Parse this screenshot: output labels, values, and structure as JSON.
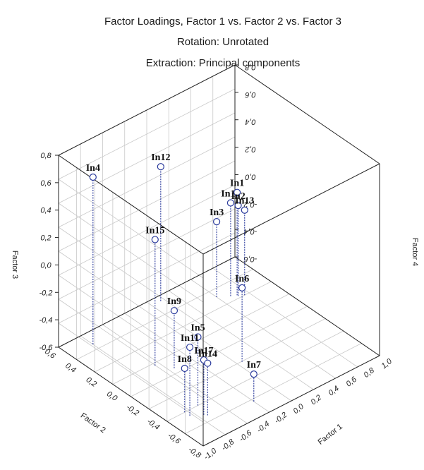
{
  "chart_data": {
    "type": "scatter3d",
    "title_lines": [
      "Factor Loadings, Factor 1 vs. Factor 2 vs. Factor 3",
      "Rotation: Unrotated",
      "Extraction: Principal components"
    ],
    "axes": {
      "factor1": {
        "label": "Factor 1",
        "range": [
          -1.0,
          1.0
        ],
        "ticks": [
          "-1,0",
          "-0,8",
          "-0,6",
          "-0,4",
          "-0,2",
          "0,0",
          "0,2",
          "0,4",
          "0,6",
          "0,8",
          "1,0"
        ]
      },
      "factor2": {
        "label": "Factor 2",
        "range": [
          -0.8,
          0.6
        ],
        "ticks": [
          "-0,8",
          "-0,6",
          "-0,4",
          "-0,2",
          "0,0",
          "0,2",
          "0,4",
          "0,6"
        ]
      },
      "factor3": {
        "label": "Factor 3",
        "range": [
          -0.6,
          0.8
        ],
        "ticks": [
          "-0,6",
          "-0,4",
          "-0,2",
          "0,0",
          "0,2",
          "0,4",
          "0,6",
          "0,8"
        ]
      },
      "factor4_right": {
        "label": "Factor 4",
        "ticks": [
          "-0,6",
          "-0,4",
          "-0,2",
          "0,0",
          "0,2",
          "0,4",
          "0,6",
          "0,8"
        ]
      }
    },
    "grid": true,
    "points": [
      {
        "label": "In4",
        "x": -0.75,
        "y": 0.48,
        "z": 0.62
      },
      {
        "label": "In15",
        "x": -0.55,
        "y": 0.05,
        "z": 0.32
      },
      {
        "label": "In12",
        "x": 0.1,
        "y": 0.55,
        "z": 0.38
      },
      {
        "label": "In1",
        "x": 0.65,
        "y": 0.28,
        "z": 0.15
      },
      {
        "label": "In10",
        "x": 0.6,
        "y": 0.3,
        "z": 0.08
      },
      {
        "label": "In2",
        "x": 0.65,
        "y": 0.27,
        "z": 0.06
      },
      {
        "label": "In13",
        "x": 0.7,
        "y": 0.25,
        "z": 0.02
      },
      {
        "label": "In3",
        "x": 0.5,
        "y": 0.35,
        "z": -0.05
      },
      {
        "label": "In6",
        "x": 0.05,
        "y": -0.28,
        "z": -0.06
      },
      {
        "label": "In9",
        "x": -0.45,
        "y": -0.05,
        "z": -0.18
      },
      {
        "label": "In7",
        "x": -0.25,
        "y": -0.65,
        "z": -0.4
      },
      {
        "label": "In11",
        "x": -0.8,
        "y": -0.5,
        "z": -0.1
      },
      {
        "label": "In5",
        "x": -0.65,
        "y": -0.45,
        "z": -0.1
      },
      {
        "label": "In17",
        "x": -0.7,
        "y": -0.55,
        "z": -0.2
      },
      {
        "label": "In14",
        "x": -0.68,
        "y": -0.57,
        "z": -0.22
      },
      {
        "label": "In8",
        "x": -0.8,
        "y": -0.45,
        "z": -0.28
      }
    ]
  }
}
